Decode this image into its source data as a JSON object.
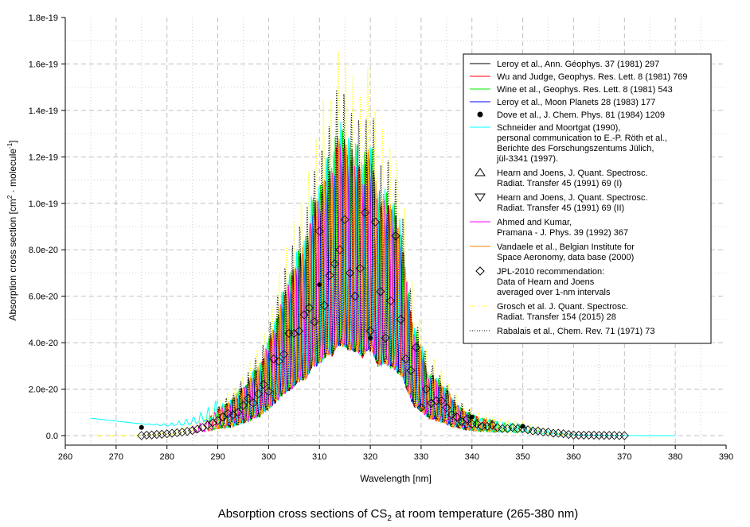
{
  "chart_data": {
    "type": "line",
    "title_parts": [
      "Absorption cross sections of CS",
      "2",
      " at room temperature (265-380 nm)"
    ],
    "xlabel": "Wavelength [nm]",
    "ylabel_parts": [
      "Absorption cross section [cm",
      "2",
      " · molecule",
      "-1",
      "]"
    ],
    "xlim": [
      260,
      390
    ],
    "ylim": [
      -0.6,
      18
    ],
    "y_unit_note": "values in units of 1e-20 cm2 molecule-1",
    "x_ticks": [
      "260",
      "270",
      "280",
      "290",
      "300",
      "310",
      "320",
      "330",
      "340",
      "350",
      "360",
      "370",
      "380",
      "390"
    ],
    "y_ticks": [
      "0.0",
      "2.0e-20",
      "4.0e-20",
      "6.0e-20",
      "8.0e-20",
      "1.0e-19",
      "1.2e-19",
      "1.4e-19",
      "1.6e-19",
      "1.8e-19"
    ],
    "grid": true,
    "legend_placement": "top-right",
    "jpl_recommendation": {
      "x_start": 275,
      "x_step": 1,
      "values": [
        0.0,
        0.02,
        0.03,
        0.05,
        0.06,
        0.08,
        0.1,
        0.12,
        0.15,
        0.18,
        0.22,
        0.28,
        0.35,
        0.45,
        0.55,
        0.65,
        0.8,
        0.95,
        0.9,
        1.0,
        1.3,
        1.6,
        1.4,
        1.8,
        2.2,
        1.9,
        3.3,
        3.2,
        3.5,
        4.4,
        4.4,
        4.5,
        5.2,
        5.5,
        4.9,
        8.8,
        5.6,
        6.9,
        7.4,
        8.0,
        9.3,
        7.0,
        6.0,
        7.2,
        9.6,
        4.5,
        9.2,
        6.2,
        4.2,
        5.8,
        8.6,
        5.0,
        3.3,
        2.8,
        3.8,
        1.2,
        2.0,
        1.4,
        1.5,
        1.5,
        1.2,
        0.9,
        0.8,
        0.6,
        0.7,
        0.5,
        0.5,
        0.4,
        0.4,
        0.45,
        0.35,
        0.3,
        0.3,
        0.35,
        0.3,
        0.3,
        0.25,
        0.2,
        0.2,
        0.15,
        0.15,
        0.1,
        0.1,
        0.08,
        0.05,
        0.03,
        0.02,
        0.02,
        0.02,
        0.02,
        0.01,
        0.01,
        0.01,
        0.01,
        0.0,
        0.0
      ]
    },
    "dove_points": {
      "x": [
        275,
        310,
        320,
        340,
        350
      ],
      "y": [
        0.35,
        6.5,
        4.2,
        0.8,
        0.4
      ]
    },
    "series": [
      {
        "name": "Leroy et al., Ann. Géophys. 37 (1981) 297",
        "color": "#000000",
        "style": "solid",
        "range": [
          290,
          345
        ],
        "gain": 1.15,
        "phase": 0.3
      },
      {
        "name": "Wu and Judge, Geophys. Res. Lett. 8 (1981) 769",
        "color": "#ff0000",
        "style": "solid",
        "range": [
          288,
          345
        ],
        "gain": 1.1,
        "phase": 1.1
      },
      {
        "name": "Wine et al., Geophys. Res. Lett. 8 (1981) 543",
        "color": "#00ee00",
        "style": "solid",
        "range": [
          288,
          350
        ],
        "gain": 1.2,
        "phase": 2.0
      },
      {
        "name": "Leroy et al., Moon Planets 28 (1983) 177",
        "color": "#0000ff",
        "style": "solid",
        "range": [
          292,
          340
        ],
        "gain": 1.05,
        "phase": 2.7
      },
      {
        "name": "Schneider and Moortgat (1990), personal communication to E.-P. Röth et al., Berichte des Forschungszentums Jülich, jül-3341 (1997).",
        "color": "#00ffff",
        "style": "solid",
        "range": [
          265,
          380
        ],
        "gain": 1.2,
        "phase": 3.4
      },
      {
        "name": "Ahmed and Kumar, Pramana - J. Phys. 39 (1992) 367",
        "color": "#ff00ff",
        "style": "solid",
        "range": [
          285,
          340
        ],
        "gain": 1.1,
        "phase": 4.2
      },
      {
        "name": "Vandaele et al., Belgian Institute for Space Aeronomy, data base (2000)",
        "color": "#ff8000",
        "style": "solid",
        "range": [
          290,
          345
        ],
        "gain": 1.15,
        "phase": 5.0
      },
      {
        "name": "Grosch et al. J. Quant. Spectrosc. Radiat. Transfer 154 (2015) 28",
        "color": "#ffff00",
        "style": "dotted",
        "range": [
          265,
          360
        ],
        "gain": 1.6,
        "phase": 5.7
      },
      {
        "name": "Rabalais et al., Chem. Rev. 71 (1971) 73",
        "color": "#000000",
        "style": "dotted",
        "range": [
          290,
          340
        ],
        "gain": 1.4,
        "phase": 0.8
      }
    ]
  },
  "legend": [
    {
      "symbol": "line",
      "color": "#000000",
      "lines": [
        "Leroy et al., Ann. Géophys. 37 (1981) 297"
      ]
    },
    {
      "symbol": "line",
      "color": "#ff0000",
      "lines": [
        "Wu and Judge, Geophys. Res. Lett. 8 (1981) 769"
      ]
    },
    {
      "symbol": "line",
      "color": "#00ee00",
      "lines": [
        "Wine et al., Geophys. Res. Lett. 8 (1981) 543"
      ]
    },
    {
      "symbol": "line",
      "color": "#0000ff",
      "lines": [
        "Leroy et al., Moon Planets 28 (1983) 177"
      ]
    },
    {
      "symbol": "dot",
      "color": "#000000",
      "lines": [
        "Dove et al., J. Chem. Phys. 81 (1984) 1209"
      ]
    },
    {
      "symbol": "line",
      "color": "#00ffff",
      "lines": [
        "Schneider and Moortgat (1990),",
        "personal communication to E.-P. Röth et al.,",
        "Berichte des Forschungszentums Jülich,",
        "jül-3341 (1997)."
      ]
    },
    {
      "symbol": "triangle-up",
      "color": "#000000",
      "lines": [
        "Hearn and Joens, J. Quant. Spectrosc.",
        "Radiat. Transfer 45 (1991) 69 (I)"
      ]
    },
    {
      "symbol": "triangle-down",
      "color": "#000000",
      "lines": [
        "Hearn and Joens, J. Quant. Spectrosc.",
        "Radiat. Transfer 45 (1991) 69 (II)"
      ]
    },
    {
      "symbol": "line",
      "color": "#ff00ff",
      "lines": [
        "Ahmed and Kumar,",
        "Pramana - J. Phys. 39 (1992) 367"
      ]
    },
    {
      "symbol": "line",
      "color": "#ff8000",
      "lines": [
        "Vandaele et al., Belgian Institute for",
        "Space Aeronomy, data base (2000)"
      ]
    },
    {
      "symbol": "diamond",
      "color": "#000000",
      "lines": [
        "JPL-2010 recommendation:",
        "Data of Hearn and Joens",
        "averaged over 1-nm intervals"
      ]
    },
    {
      "symbol": "dotted",
      "color": "#ffff00",
      "lines": [
        "Grosch et al. J. Quant. Spectrosc.",
        "Radiat. Transfer 154 (2015) 28"
      ]
    },
    {
      "symbol": "dotted",
      "color": "#000000",
      "lines": [
        "Rabalais et al., Chem. Rev. 71 (1971) 73"
      ]
    }
  ]
}
